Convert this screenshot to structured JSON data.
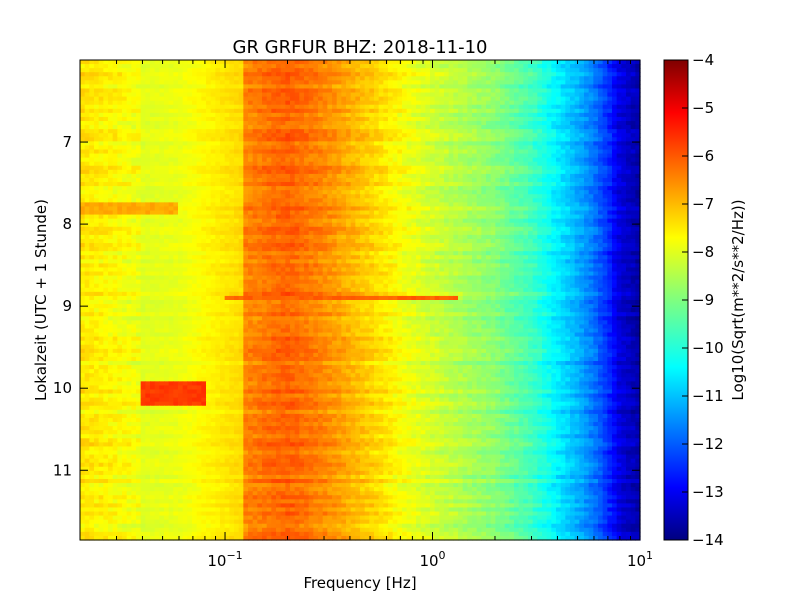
{
  "chart_data": {
    "type": "heatmap",
    "title": "GR GRFUR BHZ: 2018-11-10",
    "xlabel": "Frequency [Hz]",
    "ylabel": "Lokalzeit (UTC + 1 Stunde)",
    "x_scale": "log",
    "xlim": [
      0.02,
      10
    ],
    "x_ticks": [
      {
        "value": 0.1,
        "base": "10",
        "exp": "−1"
      },
      {
        "value": 1,
        "base": "10",
        "exp": "0"
      },
      {
        "value": 10,
        "base": "10",
        "exp": "1"
      }
    ],
    "ylim": [
      6.0,
      11.85
    ],
    "y_inverted": true,
    "y_ticks": [
      7,
      8,
      9,
      10,
      11
    ],
    "colorbar": {
      "label": "Log10(Sqrt(m**2/s**2/Hz))",
      "colormap": "jet",
      "range": [
        -14,
        -4
      ],
      "ticks": [
        -4,
        -5,
        -6,
        -7,
        -8,
        -9,
        -10,
        -11,
        -12,
        -13,
        -14
      ]
    },
    "profile": {
      "freq": [
        0.02,
        0.04,
        0.06,
        0.08,
        0.12,
        0.2,
        0.3,
        0.5,
        0.7,
        1.0,
        1.5,
        2.0,
        3.0,
        4.0,
        5.0,
        6.0,
        7.0,
        8.0,
        10.0
      ],
      "value": [
        -7.5,
        -7.9,
        -7.7,
        -7.2,
        -6.6,
        -6.2,
        -6.6,
        -7.3,
        -7.8,
        -8.2,
        -8.6,
        -8.9,
        -9.6,
        -10.4,
        -11.0,
        -11.6,
        -12.3,
        -13.1,
        -13.6
      ]
    },
    "features": [
      {
        "t_start": 6.0,
        "t_end": 11.85,
        "f_start": 0.04,
        "f_end": 0.12,
        "value": -8.2
      },
      {
        "t_start": 7.75,
        "t_end": 7.9,
        "f_start": 0.02,
        "f_end": 0.06,
        "value": -6.9
      },
      {
        "t_start": 8.87,
        "t_end": 8.93,
        "f_start": 0.1,
        "f_end": 1.3,
        "value": -6.2
      },
      {
        "t_start": 9.9,
        "t_end": 10.2,
        "f_start": 0.04,
        "f_end": 0.08,
        "value": -5.8
      }
    ]
  }
}
